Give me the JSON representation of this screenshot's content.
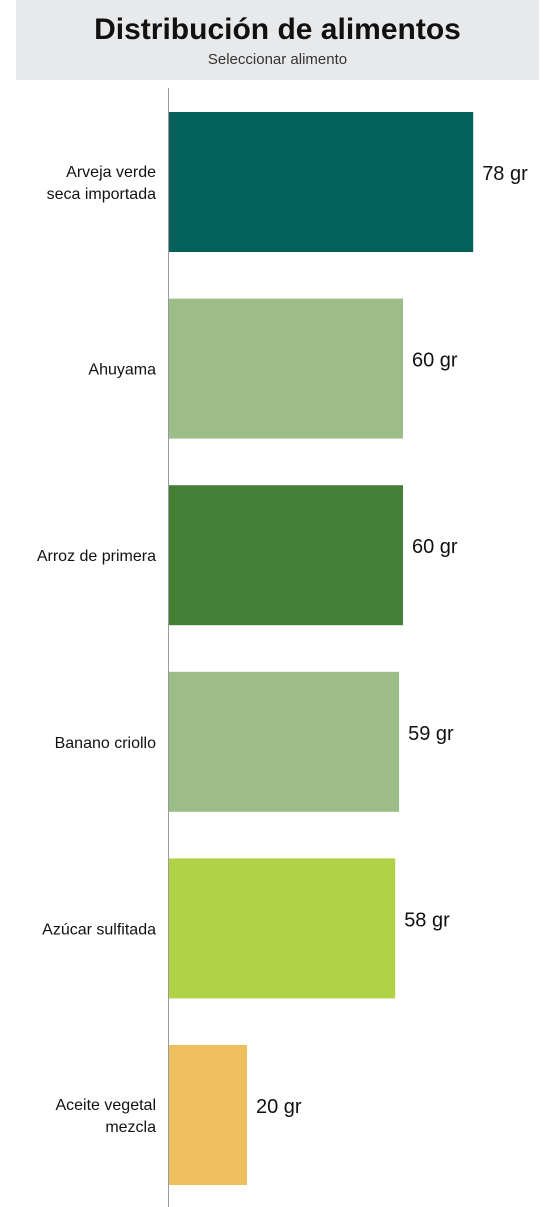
{
  "header": {
    "title": "Distribución de alimentos",
    "subtitle": "Seleccionar alimento"
  },
  "chart_data": {
    "type": "bar",
    "orientation": "horizontal",
    "title": "Distribución de alimentos",
    "subtitle": "Seleccionar alimento",
    "unit": "gr",
    "categories": [
      [
        "Arveja verde",
        "seca importada"
      ],
      [
        "Ahuyama"
      ],
      [
        "Arroz de primera"
      ],
      [
        "Banano criollo"
      ],
      [
        "Azúcar sulfitada"
      ],
      [
        "Aceite vegetal",
        "mezcla"
      ]
    ],
    "values": [
      78,
      60,
      60,
      59,
      58,
      20
    ],
    "value_labels": [
      "78 gr",
      "60 gr",
      "60 gr",
      "59 gr",
      "58 gr",
      "20 gr"
    ],
    "colors": [
      "#03605a",
      "#9dbd88",
      "#437f34",
      "#9dbd88",
      "#b0d246",
      "#eebf5e"
    ],
    "grid": false,
    "legend": "none"
  }
}
